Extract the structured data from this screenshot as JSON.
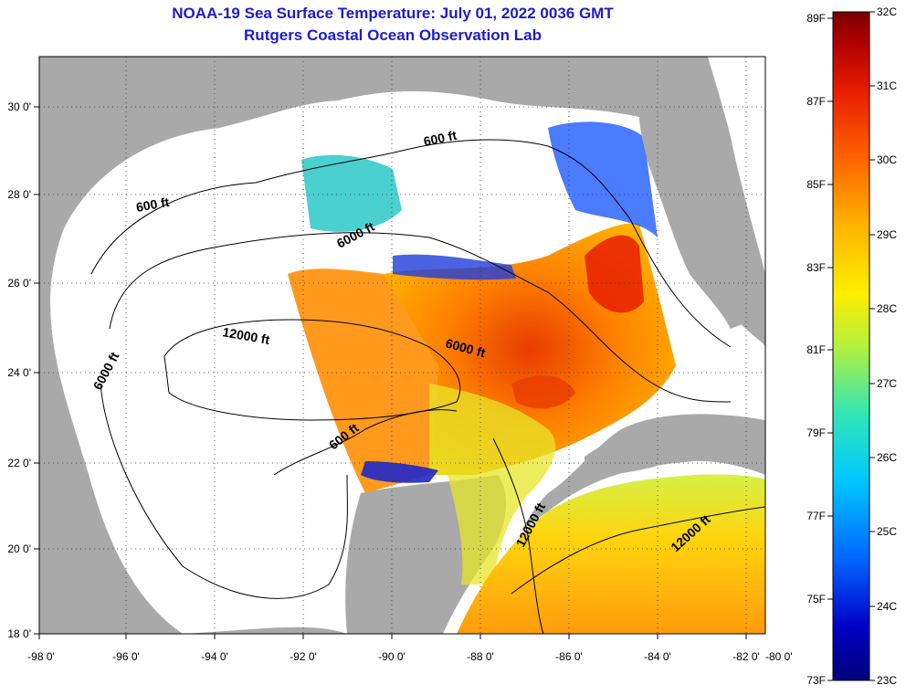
{
  "title": {
    "line1": "NOAA-19 Sea Surface Temperature:  July 01, 2022 0036 GMT",
    "line2": "Rutgers Coastal Ocean Observation Lab"
  },
  "axes": {
    "longitude_ticks": [
      "-98 0'",
      "-96 0'",
      "-94 0'",
      "-92 0'",
      "-90 0'",
      "-88 0'",
      "-86 0'",
      "-84 0'",
      "-82 0'",
      "-80 0'"
    ],
    "latitude_ticks": [
      "30 0'",
      "28 0'",
      "26 0'",
      "24 0'",
      "22 0'",
      "20 0'",
      "18 0'"
    ]
  },
  "contour_labels": [
    "600 ft",
    "600 ft",
    "6000 ft",
    "12000 ft",
    "6000 ft",
    "6000 ft",
    "600 ft",
    "12000 ft",
    "12000 ft"
  ],
  "colorbar": {
    "fahrenheit": [
      "89F",
      "87F",
      "85F",
      "83F",
      "81F",
      "79F",
      "77F",
      "75F",
      "73F"
    ],
    "celsius": [
      "32C",
      "31C",
      "30C",
      "29C",
      "28C",
      "27C",
      "26C",
      "25C",
      "24C",
      "23C"
    ],
    "colors": [
      "#7a0000",
      "#b40000",
      "#e81e00",
      "#ff6400",
      "#ffb400",
      "#ffee00",
      "#b4f03c",
      "#32e6b4",
      "#00c8ff",
      "#0064ff",
      "#0000c8",
      "#00007a"
    ]
  },
  "colors": {
    "land": "#a9a9a9",
    "cloud": "#ffffff",
    "title": "#1c1ccc"
  }
}
